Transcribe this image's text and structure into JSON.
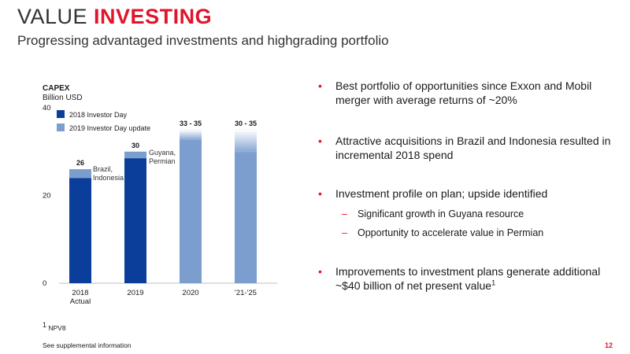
{
  "header": {
    "title_part1": "VALUE ",
    "title_part2": "INVESTING",
    "subtitle": "Progressing advantaged investments and highgrading portfolio"
  },
  "chart_data": {
    "type": "bar",
    "title": "CAPEX",
    "ylabel": "Billion USD",
    "ylim": [
      0,
      40
    ],
    "yticks": [
      "0",
      "20",
      "40"
    ],
    "categories": [
      "2018",
      "2019",
      "2020",
      "'21-'25"
    ],
    "category_sublabels": [
      "Actual",
      "",
      "",
      ""
    ],
    "series": [
      {
        "name": "2018 Investor Day",
        "values": [
          24,
          28.5,
          null,
          null
        ],
        "color": "#0b3e9a"
      },
      {
        "name": "2019 Investor Day update",
        "values": [
          2,
          1.5,
          33,
          30
        ],
        "color": "#7b9ecf"
      }
    ],
    "value_labels": [
      "26",
      "30",
      "33 - 35",
      "30 - 35"
    ],
    "range_upper": [
      null,
      null,
      35,
      35
    ],
    "annotations": [
      {
        "category": "2018",
        "text_lines": [
          "Brazil,",
          "Indonesia"
        ]
      },
      {
        "category": "2019",
        "text_lines": [
          "Guyana,",
          "Permian"
        ]
      }
    ],
    "legend_position": "top-left"
  },
  "bullets": [
    {
      "text": "Best portfolio of opportunities since Exxon and Mobil merger with average returns of ~20%"
    },
    {
      "text": "Attractive acquisitions in Brazil and Indonesia resulted in incremental 2018 spend"
    },
    {
      "text": "Investment profile on plan; upside identified"
    },
    {
      "text": "Improvements to investment plans generate additional ~$40 billion of net present value",
      "sup": "1"
    }
  ],
  "sub_bullets": [
    {
      "text": "Significant growth in Guyana resource"
    },
    {
      "text": "Opportunity to accelerate value in Permian"
    }
  ],
  "footnotes": {
    "note1_marker": "1",
    "note1_text": " NPV8",
    "note2": "See supplemental information"
  },
  "page_number": "12",
  "colors": {
    "accent": "#e0152b",
    "dark_blue": "#0b3e9a",
    "light_blue": "#7b9ecf"
  }
}
